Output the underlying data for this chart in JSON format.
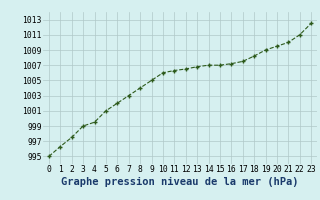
{
  "x": [
    0,
    1,
    2,
    3,
    4,
    5,
    6,
    7,
    8,
    9,
    10,
    11,
    12,
    13,
    14,
    15,
    16,
    17,
    18,
    19,
    20,
    21,
    22,
    23
  ],
  "y": [
    995.0,
    996.3,
    997.5,
    999.0,
    999.5,
    1001.0,
    1002.0,
    1003.0,
    1004.0,
    1005.0,
    1006.0,
    1006.3,
    1006.5,
    1006.8,
    1007.0,
    1007.0,
    1007.2,
    1007.5,
    1008.2,
    1009.0,
    1009.5,
    1010.0,
    1011.0,
    1012.5
  ],
  "xlabel": "Graphe pression niveau de la mer (hPa)",
  "ylim": [
    994,
    1014
  ],
  "xlim": [
    -0.5,
    23.5
  ],
  "yticks": [
    995,
    997,
    999,
    1001,
    1003,
    1005,
    1007,
    1009,
    1011,
    1013
  ],
  "xticks": [
    0,
    1,
    2,
    3,
    4,
    5,
    6,
    7,
    8,
    9,
    10,
    11,
    12,
    13,
    14,
    15,
    16,
    17,
    18,
    19,
    20,
    21,
    22,
    23
  ],
  "line_color": "#2d5a1b",
  "marker_color": "#2d5a1b",
  "bg_color": "#d6f0f0",
  "grid_color": "#b0c8c8",
  "xlabel_color": "#1a3a6b",
  "xlabel_fontsize": 7.5,
  "tick_fontsize": 5.8
}
